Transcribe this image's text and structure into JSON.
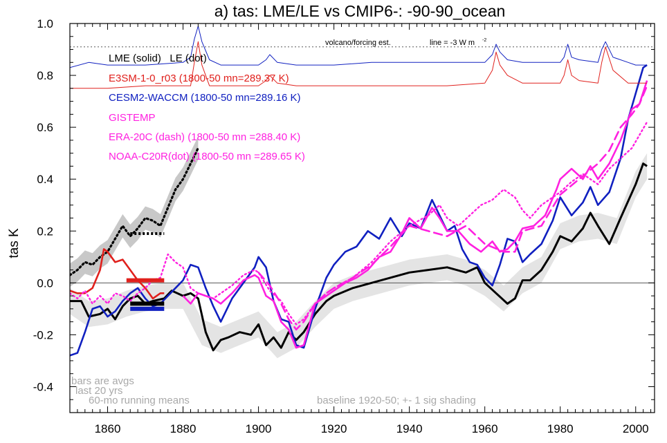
{
  "chart_data": {
    "type": "line",
    "title": "a) tas: LME/LE vs CMIP6-: -90-90_ocean",
    "xlabel": "",
    "ylabel": "tas K",
    "xlim": [
      1850,
      2005
    ],
    "ylim": [
      -0.5,
      1.0
    ],
    "x_ticks": [
      1860,
      1880,
      1900,
      1920,
      1940,
      1960,
      1980,
      2000
    ],
    "y_ticks": [
      -0.4,
      -0.2,
      0.0,
      0.2,
      0.4,
      0.6,
      0.8,
      1.0
    ],
    "x_tick_labels": [
      "1860",
      "1880",
      "1900",
      "1920",
      "1940",
      "1960",
      "1980",
      "2000"
    ],
    "y_tick_labels": [
      "-0.4",
      "-0.2",
      "0.0",
      "0.2",
      "0.4",
      "0.6",
      "0.8",
      "1.0"
    ],
    "colors": {
      "lme": "#000000",
      "e3sm": "#e0201c",
      "cesm": "#1020c0",
      "obs": "#ff20e0",
      "shade": "#d0d0d0"
    },
    "legend": [
      {
        "label": "LME (solid)   LE (dot)",
        "color": "#000000"
      },
      {
        "label": "E3SM-1-0_r03 (1800-50 mn=289.37 K)",
        "color": "#e0201c"
      },
      {
        "label": "CESM2-WACCM (1800-50 mn=289.16 K)",
        "color": "#1020c0"
      },
      {
        "label": "GISTEMP",
        "color": "#ff20e0"
      },
      {
        "label": "ERA-20C (dash) (1800-50 mn =288.40 K)",
        "color": "#ff20e0"
      },
      {
        "label": "NOAA-C20R(dot) (1800-50 mn =289.65 K)",
        "color": "#ff20e0"
      }
    ],
    "annotations": {
      "volcano": "volcano/forcing est.",
      "line": "line = -3 W m",
      "line_sup": "-2",
      "bars1": "bars are avgs",
      "bars2": "last 20 yrs",
      "running": "60-mo running means",
      "baseline": "baseline 1920-50; +- 1 sig shading"
    },
    "forcing_reference": 0.91,
    "series": [
      {
        "name": "LME (solid)",
        "x": [
          1850,
          1853,
          1855,
          1858,
          1860,
          1862,
          1864,
          1866,
          1868,
          1870,
          1872,
          1875,
          1877,
          1880,
          1882,
          1884,
          1886,
          1888,
          1890,
          1892,
          1895,
          1898,
          1900,
          1902,
          1904,
          1906,
          1908,
          1910,
          1912,
          1915,
          1918,
          1920,
          1925,
          1930,
          1935,
          1940,
          1945,
          1950,
          1955,
          1958,
          1960,
          1963,
          1966,
          1968,
          1970,
          1972,
          1975,
          1978,
          1980,
          1983,
          1986,
          1988,
          1990,
          1993,
          1996,
          2000,
          2002,
          2003
        ],
        "values": [
          -0.07,
          -0.07,
          -0.13,
          -0.12,
          -0.1,
          -0.14,
          -0.09,
          -0.06,
          -0.05,
          -0.08,
          -0.07,
          -0.06,
          -0.03,
          -0.05,
          -0.04,
          -0.06,
          -0.19,
          -0.26,
          -0.22,
          -0.21,
          -0.19,
          -0.2,
          -0.16,
          -0.24,
          -0.21,
          -0.25,
          -0.19,
          -0.22,
          -0.19,
          -0.12,
          -0.07,
          -0.05,
          -0.02,
          0.0,
          0.02,
          0.04,
          0.05,
          0.06,
          0.04,
          0.06,
          0.0,
          -0.04,
          -0.08,
          -0.06,
          0.01,
          0.01,
          0.05,
          0.12,
          0.18,
          0.16,
          0.21,
          0.27,
          0.22,
          0.15,
          0.25,
          0.38,
          0.46,
          0.45
        ]
      },
      {
        "name": "LE (dot)",
        "x": [
          1850,
          1852,
          1854,
          1856,
          1858,
          1860,
          1862,
          1864,
          1866,
          1868,
          1870,
          1872,
          1874,
          1876,
          1878,
          1880,
          1882,
          1884
        ],
        "values": [
          0.03,
          0.05,
          0.08,
          0.07,
          0.1,
          0.12,
          0.17,
          0.22,
          0.18,
          0.21,
          0.25,
          0.24,
          0.22,
          0.29,
          0.36,
          0.4,
          0.46,
          0.52
        ]
      },
      {
        "name": "E3SM-1-0_r03",
        "x": [
          1850,
          1852,
          1854,
          1856,
          1858,
          1859,
          1860,
          1862,
          1864,
          1866,
          1868,
          1870,
          1872,
          1874,
          1875
        ],
        "values": [
          -0.03,
          -0.04,
          -0.04,
          -0.02,
          0.05,
          0.13,
          0.12,
          0.08,
          0.09,
          0.05,
          0.01,
          -0.02,
          -0.06,
          -0.04,
          -0.04
        ]
      },
      {
        "name": "CESM2-WACCM",
        "x": [
          1850,
          1852,
          1854,
          1856,
          1858,
          1860,
          1862,
          1864,
          1866,
          1868,
          1870,
          1872,
          1874,
          1876,
          1878,
          1880,
          1882,
          1884,
          1886,
          1888,
          1890,
          1893,
          1896,
          1899,
          1900,
          1902,
          1904,
          1906,
          1908,
          1910,
          1912,
          1915,
          1918,
          1920,
          1923,
          1926,
          1929,
          1932,
          1935,
          1938,
          1940,
          1943,
          1946,
          1948,
          1950,
          1952,
          1954,
          1956,
          1958,
          1960,
          1962,
          1964,
          1966,
          1968,
          1970,
          1972,
          1975,
          1978,
          1980,
          1983,
          1986,
          1988,
          1990,
          1993,
          1996,
          1998,
          2000,
          2002,
          2003
        ],
        "values": [
          -0.28,
          -0.27,
          -0.19,
          -0.1,
          -0.09,
          -0.13,
          -0.11,
          -0.07,
          -0.04,
          -0.02,
          -0.06,
          -0.09,
          -0.08,
          -0.05,
          -0.02,
          0.01,
          0.07,
          0.06,
          -0.02,
          -0.09,
          -0.15,
          -0.06,
          0.0,
          0.06,
          0.1,
          0.06,
          -0.07,
          -0.14,
          -0.15,
          -0.24,
          -0.25,
          -0.1,
          0.02,
          0.07,
          0.12,
          0.14,
          0.2,
          0.17,
          0.25,
          0.18,
          0.23,
          0.21,
          0.32,
          0.26,
          0.2,
          0.22,
          0.13,
          0.08,
          0.07,
          0.02,
          -0.01,
          0.07,
          0.17,
          0.16,
          0.08,
          0.11,
          0.15,
          0.24,
          0.33,
          0.26,
          0.31,
          0.37,
          0.3,
          0.35,
          0.48,
          0.63,
          0.73,
          0.83,
          0.84
        ]
      },
      {
        "name": "GISTEMP",
        "x": [
          1880,
          1882,
          1884,
          1886,
          1888,
          1890,
          1893,
          1896,
          1899,
          1900,
          1902,
          1904,
          1906,
          1908,
          1910,
          1912,
          1915,
          1918,
          1920,
          1923,
          1926,
          1929,
          1932,
          1935,
          1938,
          1940,
          1943,
          1946,
          1948,
          1950,
          1953,
          1956,
          1959,
          1962,
          1964,
          1966,
          1968,
          1970,
          1973,
          1976,
          1979,
          1980,
          1983,
          1986,
          1988,
          1990,
          1993,
          1996,
          1999,
          2001,
          2003
        ],
        "values": [
          -0.05,
          -0.08,
          -0.04,
          -0.05,
          -0.06,
          -0.08,
          -0.04,
          0.01,
          0.03,
          0.02,
          -0.05,
          -0.07,
          -0.15,
          -0.18,
          -0.25,
          -0.24,
          -0.08,
          -0.05,
          -0.03,
          0.0,
          0.02,
          0.05,
          0.1,
          0.12,
          0.19,
          0.25,
          0.21,
          0.29,
          0.25,
          0.2,
          0.2,
          0.15,
          0.12,
          0.16,
          0.12,
          0.13,
          0.16,
          0.21,
          0.22,
          0.26,
          0.36,
          0.4,
          0.44,
          0.4,
          0.45,
          0.4,
          0.46,
          0.55,
          0.67,
          0.69,
          0.78
        ]
      },
      {
        "name": "ERA-20C (dash)",
        "x": [
          1900,
          1903,
          1906,
          1908,
          1910,
          1912,
          1915,
          1918,
          1920,
          1925,
          1930,
          1935,
          1940,
          1945,
          1950,
          1955,
          1960,
          1965,
          1968,
          1970,
          1975,
          1980,
          1985,
          1990,
          1993,
          1996,
          1999,
          2001,
          2003
        ],
        "values": [
          0.04,
          -0.01,
          -0.08,
          -0.14,
          -0.18,
          -0.15,
          -0.08,
          -0.04,
          -0.02,
          0.02,
          0.07,
          0.14,
          0.22,
          0.2,
          0.18,
          0.22,
          0.15,
          0.12,
          0.12,
          0.2,
          0.22,
          0.34,
          0.4,
          0.46,
          0.51,
          0.6,
          0.65,
          0.69,
          0.76
        ]
      },
      {
        "name": "NOAA-C20R (dot)",
        "x": [
          1850,
          1852,
          1854,
          1856,
          1858,
          1860,
          1862,
          1864,
          1866,
          1868,
          1870,
          1872,
          1874,
          1876,
          1878,
          1880,
          1882,
          1884,
          1886,
          1888,
          1890,
          1893,
          1896,
          1899,
          1900,
          1903,
          1906,
          1908,
          1910,
          1912,
          1915,
          1918,
          1920,
          1925,
          1930,
          1935,
          1940,
          1945,
          1948,
          1950,
          1953,
          1956,
          1959,
          1962,
          1965,
          1968,
          1970,
          1972,
          1975,
          1978,
          1980,
          1983,
          1986,
          1990,
          1993,
          1996,
          1999,
          2001,
          2003
        ],
        "values": [
          -0.04,
          -0.06,
          -0.03,
          -0.08,
          -0.05,
          -0.08,
          -0.04,
          -0.05,
          -0.07,
          -0.04,
          -0.02,
          0.01,
          0.02,
          0.11,
          0.08,
          0.06,
          -0.02,
          -0.04,
          -0.05,
          -0.06,
          -0.04,
          -0.01,
          0.03,
          0.05,
          0.04,
          -0.03,
          -0.07,
          -0.12,
          -0.16,
          -0.14,
          -0.08,
          -0.04,
          -0.02,
          0.02,
          0.08,
          0.16,
          0.22,
          0.26,
          0.3,
          0.25,
          0.22,
          0.26,
          0.3,
          0.32,
          0.36,
          0.33,
          0.28,
          0.25,
          0.3,
          0.33,
          0.35,
          0.39,
          0.42,
          0.38,
          0.44,
          0.48,
          0.52,
          0.57,
          0.62
        ]
      },
      {
        "name": "E3SM forcing estimate",
        "x": [
          1850,
          1860,
          1870,
          1882,
          1883,
          1884,
          1885,
          1887,
          1890,
          1900,
          1902,
          1903,
          1905,
          1910,
          1920,
          1930,
          1940,
          1950,
          1960,
          1962,
          1963,
          1964,
          1966,
          1970,
          1975,
          1980,
          1981,
          1982,
          1983,
          1985,
          1990,
          1991,
          1992,
          1994,
          1998,
          2000,
          2003
        ],
        "values": [
          0.75,
          0.75,
          0.76,
          0.76,
          0.85,
          0.93,
          0.84,
          0.76,
          0.76,
          0.76,
          0.78,
          0.8,
          0.77,
          0.76,
          0.76,
          0.76,
          0.76,
          0.76,
          0.77,
          0.82,
          0.89,
          0.84,
          0.8,
          0.77,
          0.77,
          0.77,
          0.8,
          0.86,
          0.8,
          0.78,
          0.77,
          0.85,
          0.91,
          0.82,
          0.77,
          0.77,
          0.77
        ]
      },
      {
        "name": "CESM2 forcing estimate",
        "x": [
          1850,
          1855,
          1860,
          1870,
          1880,
          1882,
          1883,
          1884,
          1885,
          1887,
          1890,
          1900,
          1902,
          1903,
          1905,
          1910,
          1920,
          1930,
          1940,
          1950,
          1960,
          1962,
          1963,
          1964,
          1966,
          1970,
          1975,
          1980,
          1981,
          1982,
          1983,
          1985,
          1990,
          1991,
          1992,
          1994,
          1998,
          2000,
          2003
        ],
        "values": [
          0.83,
          0.85,
          0.84,
          0.84,
          0.85,
          0.87,
          0.94,
          0.99,
          0.93,
          0.86,
          0.84,
          0.84,
          0.86,
          0.88,
          0.85,
          0.84,
          0.84,
          0.85,
          0.85,
          0.85,
          0.85,
          0.88,
          0.92,
          0.89,
          0.86,
          0.85,
          0.85,
          0.85,
          0.87,
          0.92,
          0.87,
          0.86,
          0.85,
          0.9,
          0.93,
          0.87,
          0.85,
          0.84,
          0.84
        ]
      }
    ],
    "uncertainty_bands": [
      {
        "name": "LME +-1 sig",
        "x": [
          1850,
          1855,
          1860,
          1865,
          1870,
          1875,
          1880,
          1885,
          1890,
          1895,
          1900,
          1905,
          1910,
          1915,
          1920,
          1925,
          1930,
          1935,
          1940,
          1945,
          1950,
          1955,
          1960,
          1965,
          1970,
          1975,
          1980,
          1985,
          1990,
          1995,
          2000,
          2003
        ],
        "values": [
          -0.07,
          -0.12,
          -0.11,
          -0.08,
          -0.06,
          -0.05,
          -0.05,
          -0.19,
          -0.22,
          -0.19,
          -0.16,
          -0.24,
          -0.2,
          -0.12,
          -0.05,
          -0.02,
          0.0,
          0.02,
          0.04,
          0.05,
          0.06,
          0.04,
          0.0,
          -0.06,
          0.01,
          0.05,
          0.18,
          0.21,
          0.22,
          0.2,
          0.38,
          0.45
        ],
        "sigma": 0.05
      },
      {
        "name": "LE +-1 sig",
        "x": [
          1850,
          1852,
          1854,
          1856,
          1858,
          1860,
          1862,
          1864,
          1866,
          1868,
          1870,
          1872,
          1874,
          1876,
          1878,
          1880,
          1882,
          1884
        ],
        "values": [
          0.03,
          0.05,
          0.08,
          0.07,
          0.1,
          0.12,
          0.17,
          0.22,
          0.18,
          0.21,
          0.25,
          0.24,
          0.22,
          0.29,
          0.36,
          0.4,
          0.46,
          0.52
        ],
        "sigma": 0.045
      }
    ],
    "bars": [
      {
        "name": "LE last 20 yrs",
        "x": [
          1866,
          1875
        ],
        "value": 0.19,
        "color": "#000000",
        "dotted": true
      },
      {
        "name": "E3SM last 20 yrs",
        "x": [
          1865,
          1875
        ],
        "value": 0.01,
        "color": "#e0201c"
      },
      {
        "name": "LME last 20 yrs",
        "x": [
          1866,
          1875
        ],
        "value": -0.08,
        "color": "#000000"
      },
      {
        "name": "CESM2 last 20 yrs",
        "x": [
          1866,
          1875
        ],
        "value": -0.1,
        "color": "#1020c0"
      }
    ]
  }
}
